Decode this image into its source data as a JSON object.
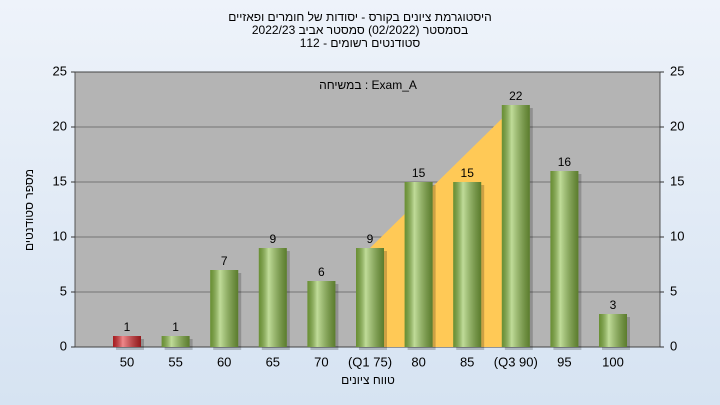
{
  "chart_data": {
    "type": "bar",
    "title": [
      "היסטוגרמת ציונים בקורס - יסודות של חומרים ופאזיים",
      "בסמסטר  (02/2022)  סמסטר אביב 2022/23",
      "סטודנטים רשומים - 112"
    ],
    "annotation": "במשיחה : Exam_A",
    "x_label": "טווח ציונים",
    "y_label": "מספר סטודנטים",
    "categories": [
      "50",
      "55",
      "60",
      "65",
      "70",
      "(Q1 75)",
      "80",
      "85",
      "(Q3 90)",
      "95",
      "100"
    ],
    "values": [
      1,
      1,
      7,
      9,
      6,
      9,
      15,
      15,
      22,
      16,
      3
    ],
    "colors": [
      "#e0262b",
      "#8cbf45",
      "#8cbf45",
      "#8cbf45",
      "#8cbf45",
      "#8cbf45",
      "#8cbf45",
      "#8cbf45",
      "#8cbf45",
      "#8cbf45",
      "#8cbf45"
    ],
    "ylim": [
      0,
      25
    ],
    "yticks": [
      0,
      5,
      10,
      15,
      20,
      25
    ],
    "y2lim": [
      0,
      25
    ],
    "y2ticks": [
      0,
      5,
      10,
      15,
      20,
      25
    ],
    "grid": true
  }
}
